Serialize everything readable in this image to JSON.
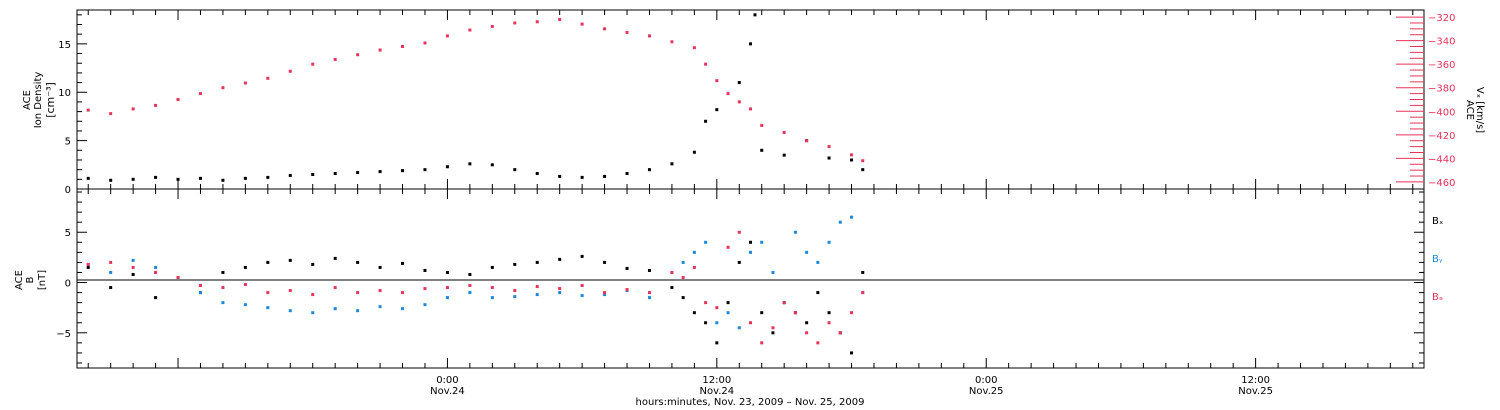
{
  "chart_data": [
    {
      "type": "scatter",
      "panel": "top",
      "ylabel_left": [
        "ACE",
        "Ion Density",
        "[cm⁻³]"
      ],
      "ylabel_right": [
        "ACE",
        "Vₓ [km/s]"
      ],
      "ylim_left": [
        0,
        18.5
      ],
      "yticks_left": [
        0,
        5,
        10,
        15
      ],
      "ylim_right": [
        -466,
        -314
      ],
      "yticks_right": [
        -320,
        -340,
        -360,
        -380,
        -400,
        -420,
        -440,
        -460
      ],
      "grid": false,
      "series": [
        {
          "axis": "left",
          "color": "#000000",
          "points": [
            [
              -16,
              1.1
            ],
            [
              -15,
              0.9
            ],
            [
              -14,
              1.0
            ],
            [
              -13,
              1.2
            ],
            [
              -12,
              1.0
            ],
            [
              -11,
              1.1
            ],
            [
              -10,
              0.9
            ],
            [
              -9,
              1.1
            ],
            [
              -8,
              1.2
            ],
            [
              -7,
              1.4
            ],
            [
              -6,
              1.5
            ],
            [
              -5,
              1.6
            ],
            [
              -4,
              1.7
            ],
            [
              -3,
              1.8
            ],
            [
              -2,
              1.9
            ],
            [
              -1,
              2.0
            ],
            [
              0,
              2.3
            ],
            [
              1,
              2.6
            ],
            [
              2,
              2.5
            ],
            [
              3,
              2.0
            ],
            [
              4,
              1.6
            ],
            [
              5,
              1.3
            ],
            [
              6,
              1.2
            ],
            [
              7,
              1.3
            ],
            [
              8,
              1.6
            ],
            [
              9,
              2.0
            ],
            [
              10,
              2.6
            ],
            [
              11,
              3.8
            ],
            [
              11.5,
              7.0
            ],
            [
              12,
              8.2
            ],
            [
              13,
              11.0
            ],
            [
              13.5,
              15.0
            ],
            [
              13.7,
              18.0
            ],
            [
              14,
              4.0
            ],
            [
              15,
              3.5
            ],
            [
              16,
              5.0
            ],
            [
              17,
              3.2
            ],
            [
              18,
              3.0
            ],
            [
              18.5,
              2.0
            ]
          ]
        },
        {
          "axis": "right",
          "color": "#e8335a",
          "points": [
            [
              -16,
              -399
            ],
            [
              -15,
              -402
            ],
            [
              -14,
              -398
            ],
            [
              -13,
              -395
            ],
            [
              -12,
              -390
            ],
            [
              -11,
              -385
            ],
            [
              -10,
              -380
            ],
            [
              -9,
              -376
            ],
            [
              -8,
              -372
            ],
            [
              -7,
              -366
            ],
            [
              -6,
              -360
            ],
            [
              -5,
              -356
            ],
            [
              -4,
              -352
            ],
            [
              -3,
              -348
            ],
            [
              -2,
              -345
            ],
            [
              -1,
              -342
            ],
            [
              0,
              -336
            ],
            [
              1,
              -331
            ],
            [
              2,
              -328
            ],
            [
              3,
              -325
            ],
            [
              4,
              -324
            ],
            [
              5,
              -322
            ],
            [
              6,
              -326
            ],
            [
              7,
              -330
            ],
            [
              8,
              -333
            ],
            [
              9,
              -336
            ],
            [
              10,
              -341
            ],
            [
              11,
              -346
            ],
            [
              11.5,
              -360
            ],
            [
              12,
              -374
            ],
            [
              12.5,
              -385
            ],
            [
              13,
              -392
            ],
            [
              13.5,
              -398
            ],
            [
              14,
              -412
            ],
            [
              15,
              -418
            ],
            [
              16,
              -425
            ],
            [
              17,
              -430
            ],
            [
              18,
              -437
            ],
            [
              18.5,
              -442
            ]
          ]
        }
      ]
    },
    {
      "type": "scatter",
      "panel": "bottom",
      "ylabel": [
        "ACE",
        "B",
        "[nT]"
      ],
      "ylim": [
        -8.5,
        9.3
      ],
      "yticks": [
        -5,
        0,
        5
      ],
      "zero_line": true,
      "grid": false,
      "legend": [
        "Bₓ",
        "Bᵧ",
        "Bₔ"
      ],
      "legend_placement": "right",
      "series": [
        {
          "name": "Bₓ",
          "color": "#000000",
          "points": [
            [
              -16,
              1.5
            ],
            [
              -15,
              -0.5
            ],
            [
              -14,
              0.8
            ],
            [
              -13,
              -1.5
            ],
            [
              -12,
              0.5
            ],
            [
              -11,
              -1.0
            ],
            [
              -10,
              1.0
            ],
            [
              -9,
              1.5
            ],
            [
              -8,
              2.0
            ],
            [
              -7,
              2.2
            ],
            [
              -6,
              1.8
            ],
            [
              -5,
              2.4
            ],
            [
              -4,
              2.0
            ],
            [
              -3,
              1.5
            ],
            [
              -2,
              1.9
            ],
            [
              -1,
              1.2
            ],
            [
              0,
              1.0
            ],
            [
              1,
              0.8
            ],
            [
              2,
              1.5
            ],
            [
              3,
              1.8
            ],
            [
              4,
              2.0
            ],
            [
              5,
              2.3
            ],
            [
              6,
              2.6
            ],
            [
              7,
              2.0
            ],
            [
              8,
              1.4
            ],
            [
              9,
              1.2
            ],
            [
              10,
              -0.5
            ],
            [
              10.5,
              -1.5
            ],
            [
              11,
              -3.0
            ],
            [
              11.5,
              -4.0
            ],
            [
              12,
              -6.0
            ],
            [
              12.5,
              -2.0
            ],
            [
              13,
              2.0
            ],
            [
              13.5,
              4.0
            ],
            [
              14,
              -3.0
            ],
            [
              14.5,
              -5.0
            ],
            [
              15,
              -2.0
            ],
            [
              15.5,
              -3.0
            ],
            [
              16,
              -4.0
            ],
            [
              16.5,
              -1.0
            ],
            [
              17,
              -3.0
            ],
            [
              17.5,
              -5.0
            ],
            [
              18,
              -7.0
            ],
            [
              18.5,
              1.0
            ]
          ]
        },
        {
          "name": "Bᵧ",
          "color": "#1e88d8",
          "points": [
            [
              -16,
              1.8
            ],
            [
              -15,
              1.0
            ],
            [
              -14,
              2.2
            ],
            [
              -13,
              1.5
            ],
            [
              -12,
              0.5
            ],
            [
              -11,
              -1.0
            ],
            [
              -10,
              -2.0
            ],
            [
              -9,
              -2.2
            ],
            [
              -8,
              -2.5
            ],
            [
              -7,
              -2.8
            ],
            [
              -6,
              -3.0
            ],
            [
              -5,
              -2.6
            ],
            [
              -4,
              -2.8
            ],
            [
              -3,
              -2.4
            ],
            [
              -2,
              -2.6
            ],
            [
              -1,
              -2.2
            ],
            [
              0,
              -1.5
            ],
            [
              1,
              -1.0
            ],
            [
              2,
              -1.5
            ],
            [
              3,
              -1.4
            ],
            [
              4,
              -1.2
            ],
            [
              5,
              -1.0
            ],
            [
              6,
              -1.3
            ],
            [
              7,
              -1.2
            ],
            [
              8,
              -0.8
            ],
            [
              9,
              -1.5
            ],
            [
              10,
              1.0
            ],
            [
              10.5,
              2.0
            ],
            [
              11,
              3.0
            ],
            [
              11.5,
              4.0
            ],
            [
              12,
              -4.0
            ],
            [
              12.5,
              -3.0
            ],
            [
              13,
              -4.5
            ],
            [
              13.5,
              3.0
            ],
            [
              14,
              4.0
            ],
            [
              14.5,
              1.0
            ],
            [
              15,
              -2.0
            ],
            [
              15.5,
              5.0
            ],
            [
              16,
              3.0
            ],
            [
              16.5,
              2.0
            ],
            [
              17,
              4.0
            ],
            [
              17.5,
              6.0
            ],
            [
              18,
              6.5
            ],
            [
              18.5,
              -1.0
            ]
          ]
        },
        {
          "name": "Bₔ",
          "color": "#e8335a",
          "points": [
            [
              -16,
              1.8
            ],
            [
              -15,
              2.0
            ],
            [
              -14,
              1.5
            ],
            [
              -13,
              1.0
            ],
            [
              -12,
              0.5
            ],
            [
              -11,
              -0.3
            ],
            [
              -10,
              -0.5
            ],
            [
              -9,
              -0.2
            ],
            [
              -8,
              -1.0
            ],
            [
              -7,
              -0.8
            ],
            [
              -6,
              -1.2
            ],
            [
              -5,
              -0.5
            ],
            [
              -4,
              -1.0
            ],
            [
              -3,
              -0.8
            ],
            [
              -2,
              -1.0
            ],
            [
              -1,
              -0.6
            ],
            [
              0,
              -0.5
            ],
            [
              1,
              -0.3
            ],
            [
              2,
              -0.5
            ],
            [
              3,
              -0.8
            ],
            [
              4,
              -0.4
            ],
            [
              5,
              -0.6
            ],
            [
              6,
              -0.3
            ],
            [
              7,
              -1.0
            ],
            [
              8,
              -0.7
            ],
            [
              9,
              -1.0
            ],
            [
              10,
              1.0
            ],
            [
              10.5,
              0.5
            ],
            [
              11,
              1.5
            ],
            [
              11.5,
              -2.0
            ],
            [
              12,
              -2.5
            ],
            [
              12.5,
              3.5
            ],
            [
              13,
              5.0
            ],
            [
              13.5,
              -4.0
            ],
            [
              14,
              -6.0
            ],
            [
              14.5,
              -4.5
            ],
            [
              15,
              -2.0
            ],
            [
              15.5,
              -3.0
            ],
            [
              16,
              -5.0
            ],
            [
              16.5,
              -6.0
            ],
            [
              17,
              -4.0
            ],
            [
              17.5,
              -5.0
            ],
            [
              18,
              -3.0
            ],
            [
              18.5,
              -1.0
            ]
          ]
        }
      ]
    }
  ],
  "x_axis": {
    "range": [
      -16.5,
      43.5
    ],
    "label": "hours:minutes, Nov. 23, 2009 – Nov. 25, 2009",
    "ticks": [
      {
        "x": 0,
        "time": "0:00",
        "date": "Nov.24"
      },
      {
        "x": 12,
        "time": "12:00",
        "date": "Nov.24"
      },
      {
        "x": 24,
        "time": "0:00",
        "date": "Nov.25"
      },
      {
        "x": 36,
        "time": "12:00",
        "date": "Nov.25"
      }
    ]
  },
  "colors": {
    "density": "#000000",
    "vx": "#e8335a",
    "bx": "#000000",
    "by": "#1e88d8",
    "bz": "#e8335a",
    "axis": "#000000"
  }
}
